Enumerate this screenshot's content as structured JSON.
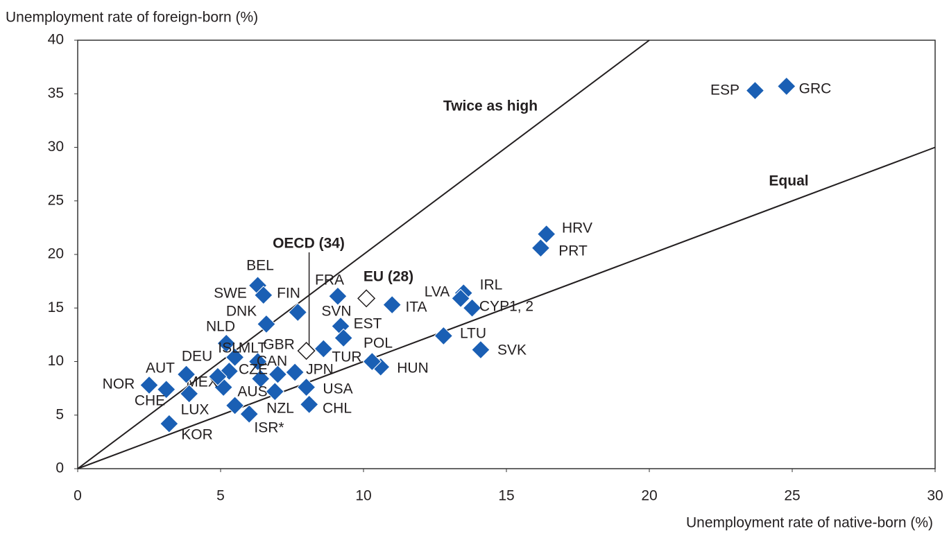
{
  "chart_data": {
    "type": "scatter",
    "y_label": "Unemployment rate of foreign-born (%)",
    "x_label": "Unemployment rate of native-born (%)",
    "xlim": [
      0,
      30
    ],
    "ylim": [
      0,
      40
    ],
    "xticks": [
      0,
      5,
      10,
      15,
      20,
      25,
      30
    ],
    "yticks": [
      0,
      5,
      10,
      15,
      20,
      25,
      30,
      35,
      40
    ],
    "color": "#1a5fb4",
    "labels": [
      "ESP",
      "GRC",
      "HRV",
      "PRT",
      "IRL",
      "LVA",
      "CYP1, 2",
      "ITA",
      "LTU",
      "SVK",
      "HUN",
      "POL",
      "FRA",
      "SVN",
      "EST",
      "TUR",
      "BEL",
      "SWE",
      "FIN",
      "DNK",
      "NLD",
      "ISL",
      "MLT",
      "GBR",
      "CAN",
      "CZE",
      "JPN",
      "USA",
      "CHL",
      "AUS",
      "NZL",
      "ISR*",
      "MEX",
      "DEU",
      "AUT",
      "NOR",
      "CHE",
      "LUX",
      "KOR"
    ],
    "x": [
      23.7,
      24.8,
      16.4,
      16.2,
      13.5,
      13.4,
      13.8,
      11.0,
      12.8,
      14.1,
      10.6,
      10.3,
      9.1,
      9.2,
      9.3,
      8.6,
      6.3,
      6.5,
      7.7,
      6.6,
      5.2,
      5.5,
      6.3,
      7.0,
      6.4,
      5.3,
      7.6,
      8.0,
      8.1,
      5.5,
      6.9,
      6.0,
      5.1,
      4.9,
      3.8,
      2.5,
      3.1,
      3.9,
      3.2
    ],
    "y": [
      35.3,
      35.7,
      21.9,
      20.6,
      16.4,
      15.9,
      15.0,
      15.3,
      12.4,
      11.1,
      9.5,
      10.0,
      16.1,
      13.3,
      12.2,
      11.2,
      17.1,
      16.2,
      14.6,
      13.5,
      11.7,
      10.4,
      10.0,
      8.8,
      8.4,
      9.1,
      9.0,
      7.6,
      6.0,
      5.9,
      7.2,
      5.1,
      7.6,
      8.6,
      8.8,
      7.8,
      7.4,
      7.0,
      4.2
    ],
    "aggregates": {
      "labels": [
        "OECD (34)",
        "EU (28)"
      ],
      "x": [
        8.0,
        10.1
      ],
      "y": [
        11.0,
        15.9
      ]
    },
    "reference_lines": [
      {
        "name": "Twice as high",
        "slope": 2
      },
      {
        "name": "Equal",
        "slope": 1
      }
    ]
  }
}
